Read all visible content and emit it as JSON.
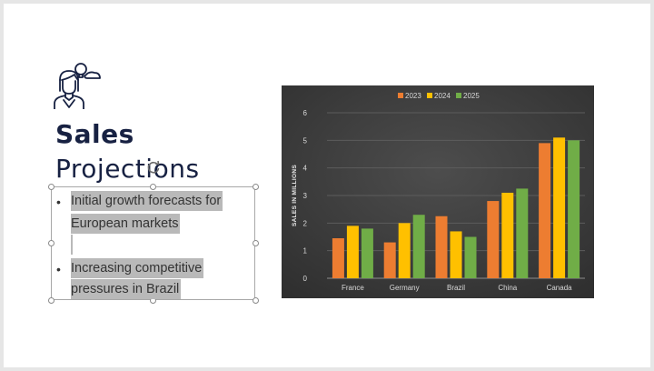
{
  "slide": {
    "title_bold": "Sales",
    "title_light": "Projections",
    "bullets": [
      {
        "lines": [
          "Initial growth forecasts for",
          "European markets"
        ]
      },
      {
        "lines": [
          "Increasing competitive",
          "pressures in Brazil"
        ]
      }
    ],
    "bullet_char": "•",
    "icon": "businesswoman-idea-icon"
  },
  "colors": {
    "slide_bg": "#ffffff",
    "title": "#172142",
    "chart_bg": "#404040",
    "text_highlight": "#b9b9b9"
  },
  "chart_data": {
    "type": "bar",
    "title": "",
    "xlabel": "",
    "ylabel": "SALES IN MILLIONS",
    "categories": [
      "France",
      "Germany",
      "Brazil",
      "China",
      "Canada"
    ],
    "series": [
      {
        "name": "2023",
        "color": "#ed7d31",
        "values": [
          1.45,
          1.3,
          2.25,
          2.8,
          4.9
        ]
      },
      {
        "name": "2024",
        "color": "#ffc000",
        "values": [
          1.9,
          2.0,
          1.7,
          3.1,
          5.1
        ]
      },
      {
        "name": "2025",
        "color": "#70ad47",
        "values": [
          1.8,
          2.3,
          1.5,
          3.25,
          5.0
        ]
      }
    ],
    "ylim": [
      0,
      6
    ],
    "yticks": [
      "0",
      "1",
      "2",
      "3",
      "4",
      "5",
      "6"
    ],
    "grid": true,
    "legend": "top-center"
  }
}
